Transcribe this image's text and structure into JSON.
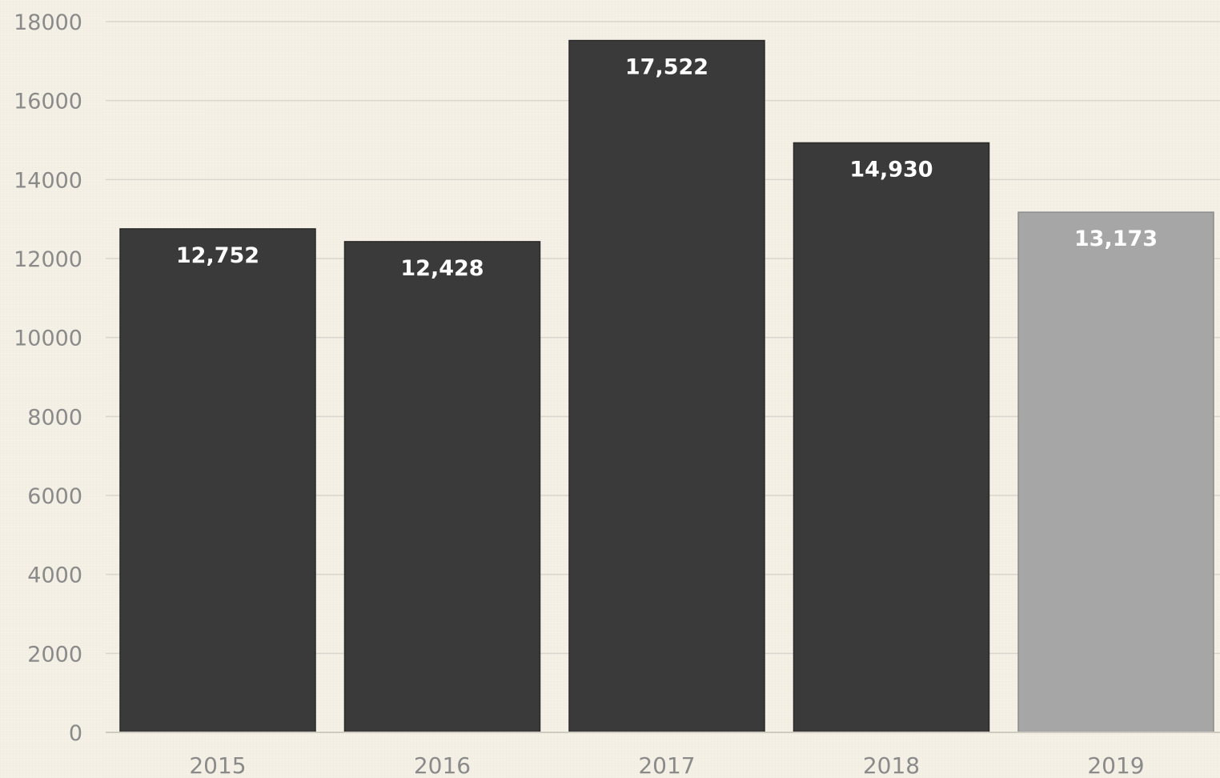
{
  "chart_data": {
    "type": "bar",
    "title": "",
    "xlabel": "",
    "ylabel": "",
    "categories": [
      "2015",
      "2016",
      "2017",
      "2018",
      "2019"
    ],
    "values": [
      12752,
      12428,
      17522,
      14930,
      13173
    ],
    "data_labels": [
      "12,752",
      "12,428",
      "17,522",
      "14,930",
      "13,173"
    ],
    "ylim": [
      0,
      18000
    ],
    "yticks": [
      "0",
      "2000",
      "4000",
      "6000",
      "8000",
      "10000",
      "12000",
      "14000",
      "16000",
      "18000"
    ],
    "grid": true,
    "legend": "none",
    "colors": {
      "bar": "#3a3a3a",
      "bar_highlight": "#a6a6a6",
      "highlight_category": "2019",
      "grid": "#d9d6cf",
      "tick_text": "#8a8a8a",
      "data_label_text": "#ffffff",
      "background": "#f6f1e6"
    }
  }
}
